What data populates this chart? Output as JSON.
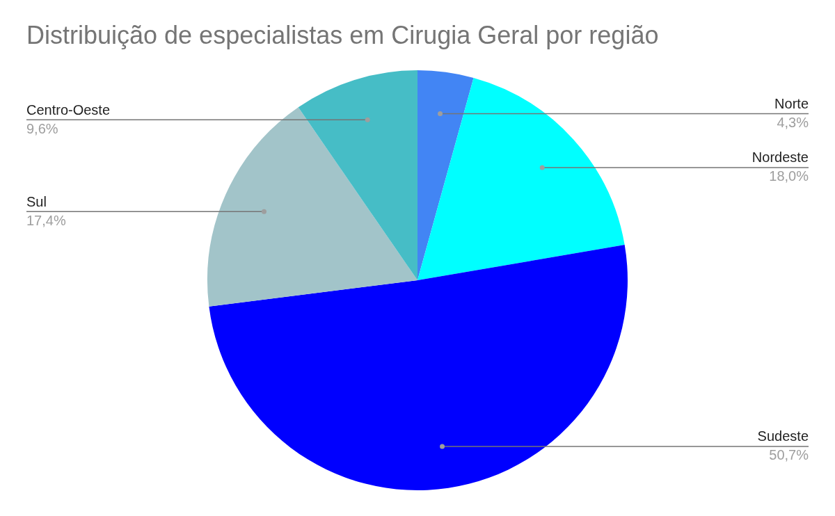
{
  "chart_data": {
    "type": "pie",
    "title": "Distribuição de especialistas em Cirugia Geral por região",
    "categories": [
      "Norte",
      "Nordeste",
      "Sudeste",
      "Sul",
      "Centro-Oeste"
    ],
    "values": [
      4.3,
      18.0,
      50.7,
      17.4,
      9.6
    ],
    "value_labels": [
      "4,3%",
      "18,0%",
      "50,7%",
      "17,4%",
      "9,6%"
    ],
    "colors": [
      "#4285f4",
      "#00ffff",
      "#0000ff",
      "#a2c4c9",
      "#46bdc6"
    ],
    "legend": false
  }
}
